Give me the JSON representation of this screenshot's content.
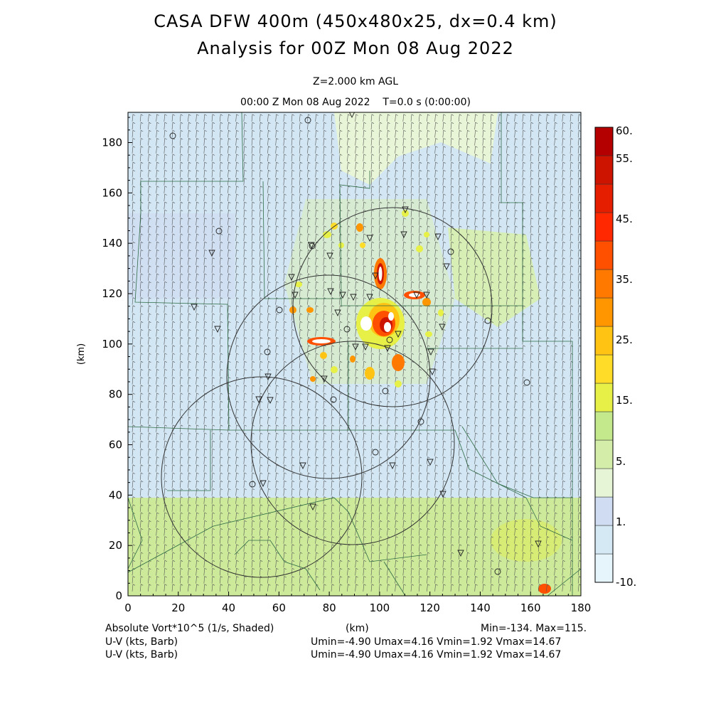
{
  "header": {
    "title_line1": "CASA DFW 400m (450x480x25, dx=0.4 km)",
    "title_line2": "Analysis for 00Z Mon 08 Aug 2022",
    "level": "Z=2.000 km AGL",
    "time": "00:00 Z Mon 08 Aug 2022    T=0.0 s (0:00:00)"
  },
  "footer": {
    "field1": "Absolute Vort*10^5 (1/s, Shaded)",
    "field2": "U-V (kts, Barb)",
    "field3": "U-V (kts, Barb)",
    "xunit": "(km)",
    "minmax": "Min=-134. Max=115.",
    "uv_stats1": "Umin=-4.90 Umax=4.16 Vmin=1.92 Vmax=14.67",
    "uv_stats2": "Umin=-4.90 Umax=4.16 Vmin=1.92 Vmax=14.67"
  },
  "colors": {
    "background_main": "#d2e6f3",
    "band_south": "#cdea9a",
    "colorbar": [
      "#e6f4fb",
      "#d5e9f5",
      "#d0dcf2",
      "#e6f5d5",
      "#d4eeaa",
      "#c4e88c",
      "#e6f046",
      "#ffdc28",
      "#ffc314",
      "#ff9600",
      "#ff7800",
      "#ff5000",
      "#ff2800",
      "#e61e00",
      "#cc1400",
      "#b40000"
    ]
  },
  "chart_data": {
    "type": "heatmap",
    "title": "CASA DFW 400m (450x480x25, dx=0.4 km)",
    "subtitle": "Analysis for 00Z Mon 08 Aug 2022",
    "xlabel": "(km)",
    "ylabel": "(km)",
    "xlim": [
      0,
      180
    ],
    "ylim": [
      0,
      192
    ],
    "xticks": [
      "0",
      "20",
      "40",
      "60",
      "80",
      "100",
      "120",
      "140",
      "160",
      "180"
    ],
    "yticks": [
      "0",
      "20",
      "40",
      "60",
      "80",
      "100",
      "120",
      "140",
      "160",
      "180"
    ],
    "colorbar_labels": [
      "60.",
      "55.",
      "45.",
      "35.",
      "25.",
      "15.",
      "5.",
      "1.",
      "-10."
    ],
    "field_min": -134,
    "field_max": 115,
    "wind": {
      "umin": -4.9,
      "umax": 4.16,
      "vmin": 1.92,
      "vmax": 14.67
    }
  }
}
